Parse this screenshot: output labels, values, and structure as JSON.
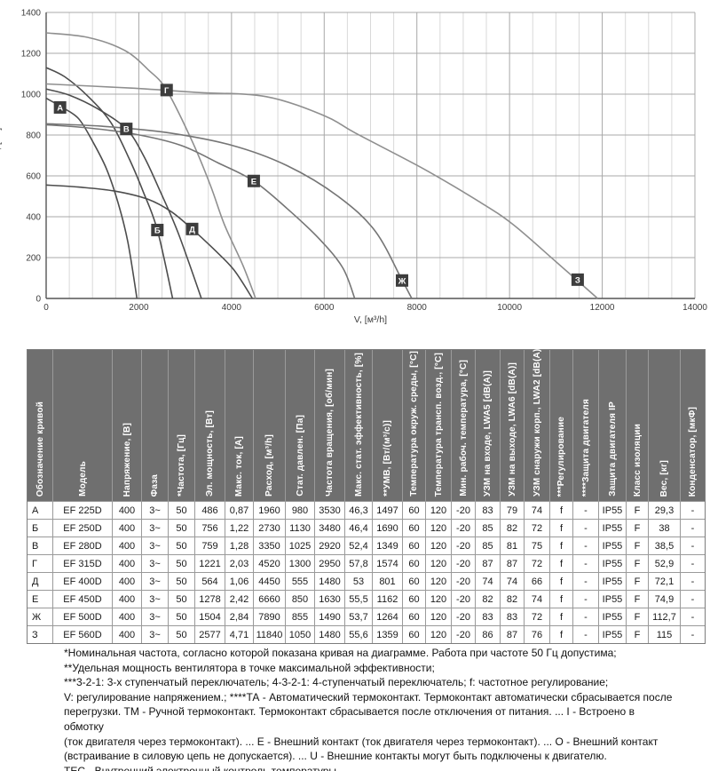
{
  "chart_data": {
    "type": "line",
    "title": "",
    "xlabel": "V, [м³/h]",
    "ylabel": "Pst, [Па]",
    "xlim": [
      0,
      14000
    ],
    "ylim": [
      0,
      1400
    ],
    "x_ticks": [
      0,
      2000,
      4000,
      6000,
      8000,
      10000,
      12000,
      14000
    ],
    "y_ticks": [
      0,
      200,
      400,
      600,
      800,
      1000,
      1200,
      1400
    ],
    "x_minor_step": 500,
    "grid": "on",
    "legend_position": "labels-on-curves",
    "series": [
      {
        "name": "А",
        "color": "#4d4d4d",
        "label_at": [
          300,
          935
        ],
        "points": [
          [
            0,
            980
          ],
          [
            350,
            935
          ],
          [
            700,
            880
          ],
          [
            1000,
            770
          ],
          [
            1300,
            635
          ],
          [
            1550,
            470
          ],
          [
            1760,
            280
          ],
          [
            1960,
            0
          ]
        ]
      },
      {
        "name": "Б",
        "color": "#4d4d4d",
        "label_at": [
          2400,
          335
        ],
        "points": [
          [
            0,
            1130
          ],
          [
            400,
            1085
          ],
          [
            900,
            990
          ],
          [
            1400,
            860
          ],
          [
            1800,
            680
          ],
          [
            2100,
            520
          ],
          [
            2400,
            335
          ],
          [
            2730,
            0
          ]
        ]
      },
      {
        "name": "В",
        "color": "#4d4d4d",
        "label_at": [
          1730,
          830
        ],
        "points": [
          [
            0,
            1025
          ],
          [
            500,
            995
          ],
          [
            1100,
            930
          ],
          [
            1730,
            830
          ],
          [
            2100,
            700
          ],
          [
            2450,
            530
          ],
          [
            2850,
            320
          ],
          [
            3350,
            0
          ]
        ]
      },
      {
        "name": "Г",
        "color": "#8f8f8f",
        "label_at": [
          2600,
          1020
        ],
        "points": [
          [
            0,
            1300
          ],
          [
            900,
            1278
          ],
          [
            1690,
            1215
          ],
          [
            2200,
            1120
          ],
          [
            2600,
            1020
          ],
          [
            3160,
            765
          ],
          [
            3550,
            550
          ],
          [
            3850,
            360
          ],
          [
            4250,
            160
          ],
          [
            4520,
            0
          ]
        ]
      },
      {
        "name": "Д",
        "color": "#4d4d4d",
        "label_at": [
          3150,
          340
        ],
        "points": [
          [
            0,
            555
          ],
          [
            700,
            545
          ],
          [
            1500,
            525
          ],
          [
            2200,
            485
          ],
          [
            2700,
            425
          ],
          [
            3150,
            340
          ],
          [
            3600,
            245
          ],
          [
            4050,
            140
          ],
          [
            4450,
            0
          ]
        ]
      },
      {
        "name": "Е",
        "color": "#757575",
        "label_at": [
          4480,
          575
        ],
        "points": [
          [
            0,
            850
          ],
          [
            900,
            835
          ],
          [
            1900,
            805
          ],
          [
            2900,
            750
          ],
          [
            3700,
            665
          ],
          [
            4480,
            575
          ],
          [
            5200,
            440
          ],
          [
            5900,
            290
          ],
          [
            6400,
            150
          ],
          [
            6660,
            0
          ]
        ]
      },
      {
        "name": "Ж",
        "color": "#757575",
        "label_at": [
          7680,
          88
        ],
        "points": [
          [
            0,
            855
          ],
          [
            1200,
            843
          ],
          [
            2600,
            812
          ],
          [
            4000,
            750
          ],
          [
            5200,
            650
          ],
          [
            6300,
            500
          ],
          [
            7100,
            330
          ],
          [
            7680,
            90
          ],
          [
            7890,
            0
          ]
        ]
      },
      {
        "name": "З",
        "color": "#8f8f8f",
        "label_at": [
          11470,
          92
        ],
        "points": [
          [
            0,
            1050
          ],
          [
            1800,
            1030
          ],
          [
            3300,
            1008
          ],
          [
            4750,
            988
          ],
          [
            6000,
            895
          ],
          [
            6670,
            810
          ],
          [
            8140,
            635
          ],
          [
            9300,
            480
          ],
          [
            10060,
            365
          ],
          [
            11000,
            180
          ],
          [
            11900,
            0
          ]
        ]
      }
    ]
  },
  "table": {
    "headers": [
      "Обозначение кривой",
      "Модель",
      "Напряжение, [В]",
      "Фаза",
      "*Частота, [Гц]",
      "Эл. мощность, [Вт]",
      "Макс. ток, [А]",
      "Расход, [м³/h]",
      "Стат. давлен. [Па]",
      "Частота вращения, [об/мин]",
      "Макс. стат. эффективность, [%]",
      "**УМВ, [Вт/(м³/с)]",
      "Температура окруж. среды, [°C]",
      "Температура трансп. возд., [°C]",
      "Мин. рабоч. температура, [°C]",
      "УЗМ на входе, LWA5 [dB(A)]",
      "УЗМ на выходе, LWA6 [dB(A)]",
      "УЗМ снаружи корп., LWA2 [dB(A)]",
      "***Регулирование",
      "****Защита двигателя",
      "Защита двигателя IP",
      "Класс изоляции",
      "Вес, [кг]",
      "Конденсатор, [мкФ]"
    ],
    "rows": [
      [
        "А",
        "EF 225D",
        "400",
        "3~",
        "50",
        "486",
        "0,87",
        "1960",
        "980",
        "3530",
        "46,3",
        "1497",
        "60",
        "120",
        "-20",
        "83",
        "79",
        "74",
        "f",
        "-",
        "IP55",
        "F",
        "29,3",
        "-"
      ],
      [
        "Б",
        "EF 250D",
        "400",
        "3~",
        "50",
        "756",
        "1,22",
        "2730",
        "1130",
        "3480",
        "46,4",
        "1690",
        "60",
        "120",
        "-20",
        "85",
        "82",
        "72",
        "f",
        "-",
        "IP55",
        "F",
        "38",
        "-"
      ],
      [
        "В",
        "EF 280D",
        "400",
        "3~",
        "50",
        "759",
        "1,28",
        "3350",
        "1025",
        "2920",
        "52,4",
        "1349",
        "60",
        "120",
        "-20",
        "85",
        "81",
        "75",
        "f",
        "-",
        "IP55",
        "F",
        "38,5",
        "-"
      ],
      [
        "Г",
        "EF 315D",
        "400",
        "3~",
        "50",
        "1221",
        "2,03",
        "4520",
        "1300",
        "2950",
        "57,8",
        "1574",
        "60",
        "120",
        "-20",
        "87",
        "87",
        "72",
        "f",
        "-",
        "IP55",
        "F",
        "52,9",
        "-"
      ],
      [
        "Д",
        "EF 400D",
        "400",
        "3~",
        "50",
        "564",
        "1,06",
        "4450",
        "555",
        "1480",
        "53",
        "801",
        "60",
        "120",
        "-20",
        "74",
        "74",
        "66",
        "f",
        "-",
        "IP55",
        "F",
        "72,1",
        "-"
      ],
      [
        "Е",
        "EF 450D",
        "400",
        "3~",
        "50",
        "1278",
        "2,42",
        "6660",
        "850",
        "1630",
        "55,5",
        "1162",
        "60",
        "120",
        "-20",
        "82",
        "82",
        "74",
        "f",
        "-",
        "IP55",
        "F",
        "74,9",
        "-"
      ],
      [
        "Ж",
        "EF 500D",
        "400",
        "3~",
        "50",
        "1504",
        "2,84",
        "7890",
        "855",
        "1490",
        "53,7",
        "1264",
        "60",
        "120",
        "-20",
        "83",
        "83",
        "72",
        "f",
        "-",
        "IP55",
        "F",
        "112,7",
        "-"
      ],
      [
        "З",
        "EF 560D",
        "400",
        "3~",
        "50",
        "2577",
        "4,71",
        "11840",
        "1050",
        "1480",
        "55,6",
        "1359",
        "60",
        "120",
        "-20",
        "86",
        "87",
        "76",
        "f",
        "-",
        "IP55",
        "F",
        "115",
        "-"
      ]
    ]
  },
  "footnotes": {
    "lines": [
      "*Номинальная частота, согласно которой показана кривая на диаграмме. Работа при частоте 50 Гц допустима;",
      "**Удельная мощность вентилятора в точке максимальной эффективности;",
      "***3-2-1: 3-х ступенчатый переключатель; 4-3-2-1: 4-ступенчатый переключатель; f: частотное регулирование;",
      "V: регулирование напряжением.; ****ТА - Автоматический термоконтакт. Термоконтакт автоматически сбрасывается после",
      "перегрузки. ТМ - Ручной термоконтакт. Термоконтакт сбрасывается после отключения от питания. ... I - Встроено в обмотку",
      "(ток двигателя через термоконтакт). ... Е - Внешний контакт (ток двигателя через термоконтакт). ... О - Внешний контакт",
      "(встраивание в силовую цепь не допускается). ... U - Внешние контакты могут быть подключены к двигателю.",
      "ТЕС - Внутренний электронный контроль температуры."
    ]
  }
}
